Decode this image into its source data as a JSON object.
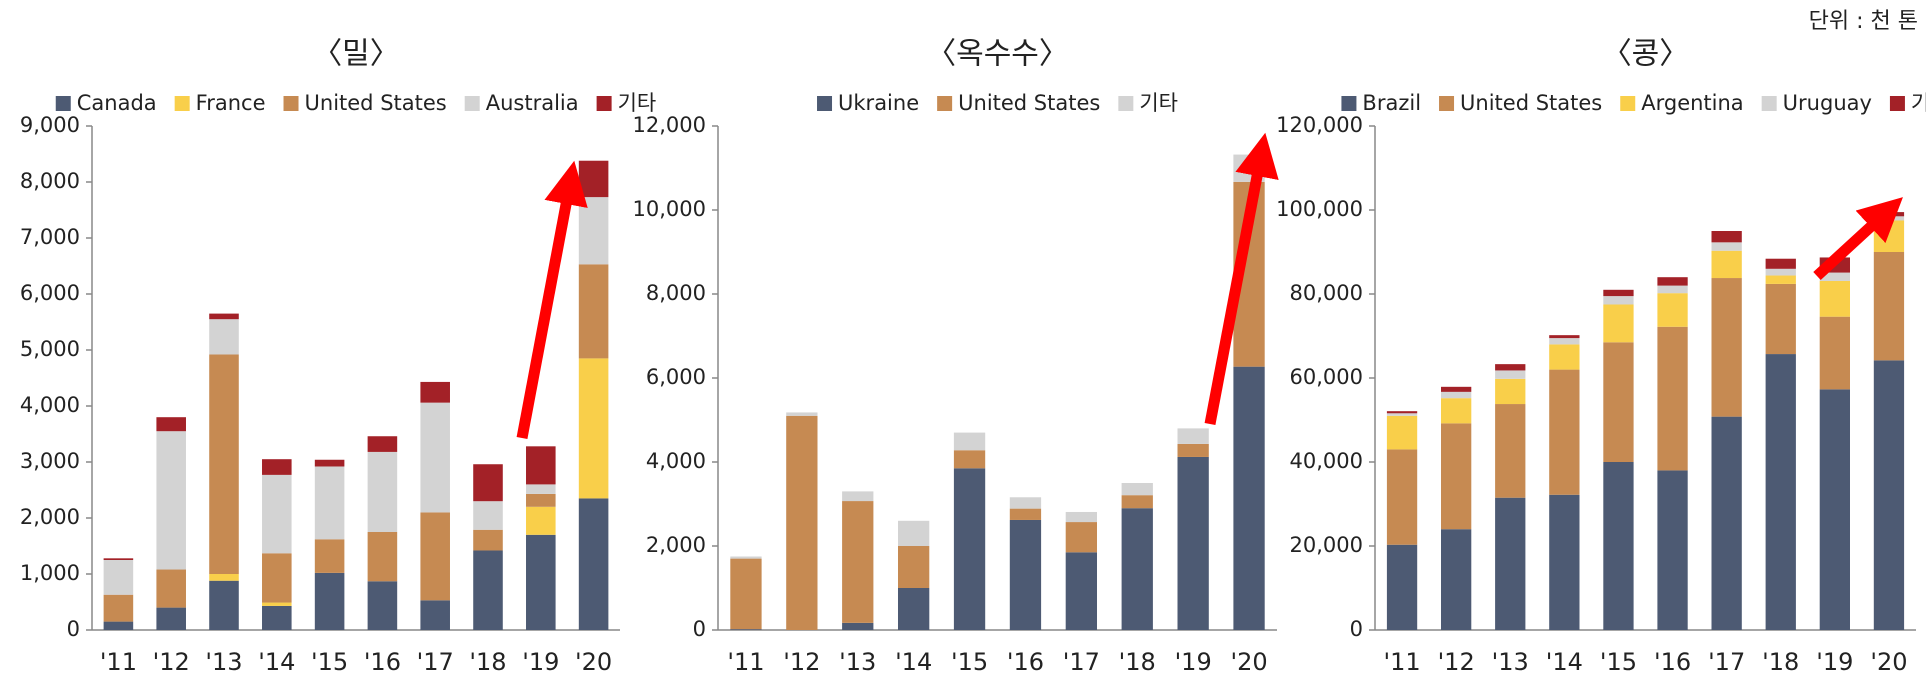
{
  "unit": "단위 : 천 톤",
  "chart_data": [
    {
      "type": "stacked_bar",
      "title": "〈밀〉",
      "categories": [
        "'11",
        "'12",
        "'13",
        "'14",
        "'15",
        "'16",
        "'17",
        "'18",
        "'19",
        "'20"
      ],
      "ylim": [
        0,
        9000
      ],
      "yticks": [
        0,
        {
          "value": 1000,
          "label": "1,000"
        },
        {
          "value": 2000,
          "label": "2,000"
        },
        {
          "value": 3000,
          "label": "3,000"
        },
        {
          "value": 4000,
          "label": "4,000"
        },
        {
          "value": 5000,
          "label": "5,000"
        },
        {
          "value": 6000,
          "label": "6,000"
        },
        {
          "value": 7000,
          "label": "7,000"
        },
        {
          "value": 8000,
          "label": "8,000"
        },
        {
          "value": 9000,
          "label": "9,000"
        }
      ],
      "series": [
        {
          "name": "Canada",
          "color": "#4d5a73",
          "values": [
            150,
            400,
            880,
            430,
            1020,
            870,
            530,
            1420,
            1700,
            2350
          ]
        },
        {
          "name": "France",
          "color": "#f9cf4a",
          "values": [
            0,
            0,
            120,
            60,
            0,
            0,
            0,
            0,
            500,
            2500
          ]
        },
        {
          "name": "United States",
          "color": "#c68a52",
          "values": [
            480,
            680,
            3920,
            880,
            600,
            880,
            1570,
            370,
            230,
            1680
          ]
        },
        {
          "name": "Australia",
          "color": "#d3d3d3",
          "values": [
            620,
            2470,
            630,
            1400,
            1300,
            1430,
            1960,
            510,
            170,
            1200
          ]
        },
        {
          "name": "기타",
          "color": "#a32127",
          "values": [
            30,
            250,
            100,
            280,
            120,
            280,
            370,
            660,
            680,
            650
          ]
        }
      ]
    },
    {
      "type": "stacked_bar",
      "title": "〈옥수수〉",
      "categories": [
        "'11",
        "'12",
        "'13",
        "'14",
        "'15",
        "'16",
        "'17",
        "'18",
        "'19",
        "'20"
      ],
      "ylim": [
        0,
        12000
      ],
      "yticks": [
        0,
        {
          "value": 2000,
          "label": "2,000"
        },
        {
          "value": 4000,
          "label": "4,000"
        },
        {
          "value": 6000,
          "label": "6,000"
        },
        {
          "value": 8000,
          "label": "8,000"
        },
        {
          "value": 10000,
          "label": "10,000"
        },
        {
          "value": 12000,
          "label": "12,000"
        }
      ],
      "series": [
        {
          "name": "Ukraine",
          "color": "#4d5a73",
          "values": [
            20,
            0,
            170,
            1000,
            3850,
            2620,
            1850,
            2900,
            4120,
            6270
          ]
        },
        {
          "name": "United States",
          "color": "#c68a52",
          "values": [
            1680,
            5100,
            2900,
            1000,
            430,
            270,
            720,
            310,
            310,
            4400
          ]
        },
        {
          "name": "기타",
          "color": "#d3d3d3",
          "values": [
            50,
            80,
            230,
            600,
            420,
            270,
            240,
            290,
            370,
            650
          ]
        }
      ]
    },
    {
      "type": "stacked_bar",
      "title": "〈콩〉",
      "categories": [
        "'11",
        "'12",
        "'13",
        "'14",
        "'15",
        "'16",
        "'17",
        "'18",
        "'19",
        "'20"
      ],
      "ylim": [
        0,
        120000
      ],
      "yticks": [
        0,
        {
          "value": 20000,
          "label": "20,000"
        },
        {
          "value": 40000,
          "label": "40,000"
        },
        {
          "value": 60000,
          "label": "60,000"
        },
        {
          "value": 80000,
          "label": "80,000"
        },
        {
          "value": 100000,
          "label": "100,000"
        },
        {
          "value": 120000,
          "label": "120,000"
        }
      ],
      "series": [
        {
          "name": "Brazil",
          "color": "#4d5a73",
          "values": [
            20300,
            24000,
            31500,
            32200,
            40000,
            38000,
            50800,
            65700,
            57300,
            64200
          ]
        },
        {
          "name": "United States",
          "color": "#c68a52",
          "values": [
            22700,
            25200,
            22300,
            29800,
            28500,
            34200,
            33000,
            16700,
            17300,
            25800
          ]
        },
        {
          "name": "Argentina",
          "color": "#f9cf4a",
          "values": [
            8000,
            6000,
            6000,
            6000,
            9000,
            8000,
            6500,
            2000,
            8500,
            7500
          ]
        },
        {
          "name": "Uruguay",
          "color": "#d3d3d3",
          "values": [
            600,
            1500,
            2000,
            1500,
            2000,
            1800,
            2000,
            1600,
            2000,
            1000
          ]
        },
        {
          "name": "기타",
          "color": "#a32127",
          "values": [
            500,
            1200,
            1500,
            700,
            1500,
            2000,
            2700,
            2400,
            3600,
            1000
          ]
        }
      ]
    }
  ]
}
